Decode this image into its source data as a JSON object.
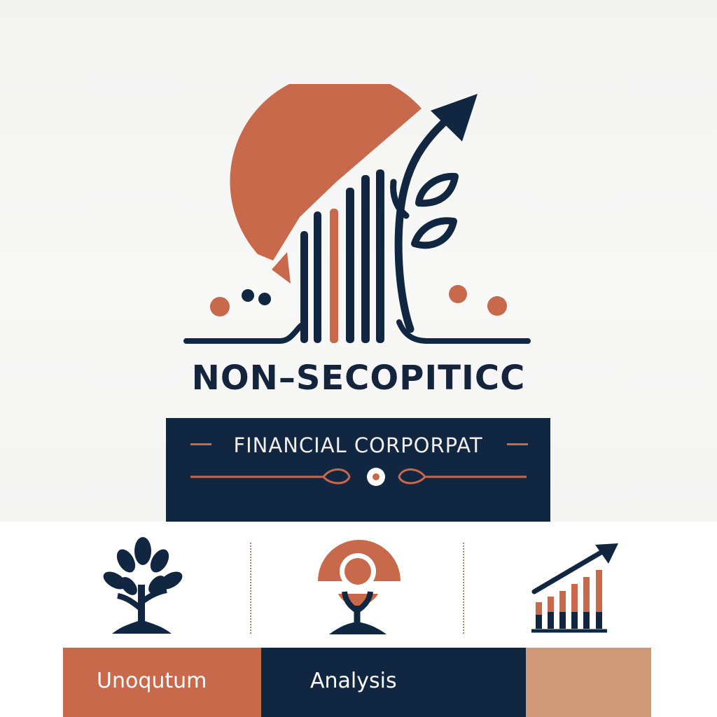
{
  "brand": {
    "name": "NON–SECOPITICC",
    "tagline": "FINANCIAL CORPORPAT"
  },
  "colors": {
    "navy": "#112640",
    "terracotta": "#c7694a",
    "sand": "#cf9876",
    "background": "#f6f6f5"
  },
  "features": [
    {
      "icon": "tree-icon"
    },
    {
      "icon": "person-growth-icon"
    },
    {
      "icon": "growth-bar-chart-icon"
    }
  ],
  "tabs": [
    {
      "label": "Unoqutum"
    },
    {
      "label": "Analysis"
    },
    {
      "label": ""
    }
  ]
}
